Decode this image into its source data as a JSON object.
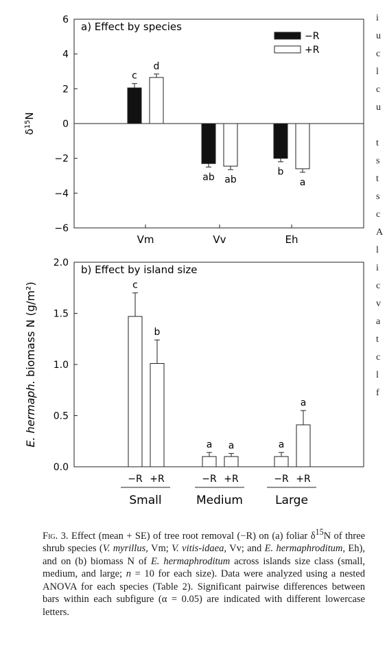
{
  "chart_data": [
    {
      "type": "bar",
      "title": "a) Effect by species",
      "ylabel": "δ¹⁵N",
      "xlabel": "",
      "categories": [
        "Vm",
        "Vv",
        "Eh"
      ],
      "series": [
        {
          "name": "−R",
          "color": "#111111",
          "values": [
            2.05,
            -2.3,
            -2.0
          ],
          "se": [
            0.25,
            0.2,
            0.2
          ],
          "letters": [
            "c",
            "ab",
            "b"
          ]
        },
        {
          "name": "+R",
          "color": "#ffffff",
          "values": [
            2.65,
            -2.45,
            -2.6
          ],
          "se": [
            0.2,
            0.2,
            0.2
          ],
          "letters": [
            "d",
            "ab",
            "a"
          ]
        }
      ],
      "ylim": [
        -6,
        6
      ],
      "yticks": [
        -6,
        -4,
        -2,
        0,
        2,
        4,
        6
      ],
      "legend_position": "top-right"
    },
    {
      "type": "bar",
      "title": "b) Effect by island size",
      "ylabel_italic": "E. hermaph.",
      "ylabel_rest": " biomass N (g/m²)",
      "xlabel": "",
      "groups": [
        "Small",
        "Medium",
        "Large"
      ],
      "bar_labels": [
        "−R",
        "+R"
      ],
      "values": [
        [
          1.47,
          1.01
        ],
        [
          0.1,
          0.1
        ],
        [
          0.1,
          0.41
        ]
      ],
      "se": [
        [
          0.23,
          0.23
        ],
        [
          0.04,
          0.03
        ],
        [
          0.04,
          0.14
        ]
      ],
      "letters": [
        [
          "c",
          "b"
        ],
        [
          "a",
          "a"
        ],
        [
          "a",
          "a"
        ]
      ],
      "ylim": [
        0,
        2.0
      ],
      "yticks": [
        "0.0",
        "0.5",
        "1.0",
        "1.5",
        "2.0"
      ]
    }
  ],
  "sidebar_letters": [
    "i",
    "u",
    "c",
    "l",
    "c",
    "u",
    "",
    "t",
    "s",
    "t",
    "s",
    "c",
    "A",
    "l",
    "i",
    "c",
    "v",
    "a",
    "t",
    "c",
    "l",
    "f"
  ],
  "caption": {
    "label": "Fig. 3.",
    "p1": "Effect (mean + SE) of tree root removal (−R) on (a) foliar δ",
    "sup15": "15",
    "p2": "N of three shrub species (",
    "i1": "V. myrillus",
    "p3": ", Vm; ",
    "i2": "V. vitis-idaea",
    "p4": ", Vv; and ",
    "i3": "E. hermaphroditum",
    "p5": ", Eh), and on (b) biomass N of ",
    "i4": "E. hermaphroditum",
    "p6": " across islands size class (small, medium, and large; ",
    "i5": "n",
    "p7": " = 10 for each size). Data were analyzed using a nested ANOVA for each species (Table 2). Significant pairwise differences between bars within each subfigure (α = 0.05) are indicated with different lowercase letters."
  }
}
